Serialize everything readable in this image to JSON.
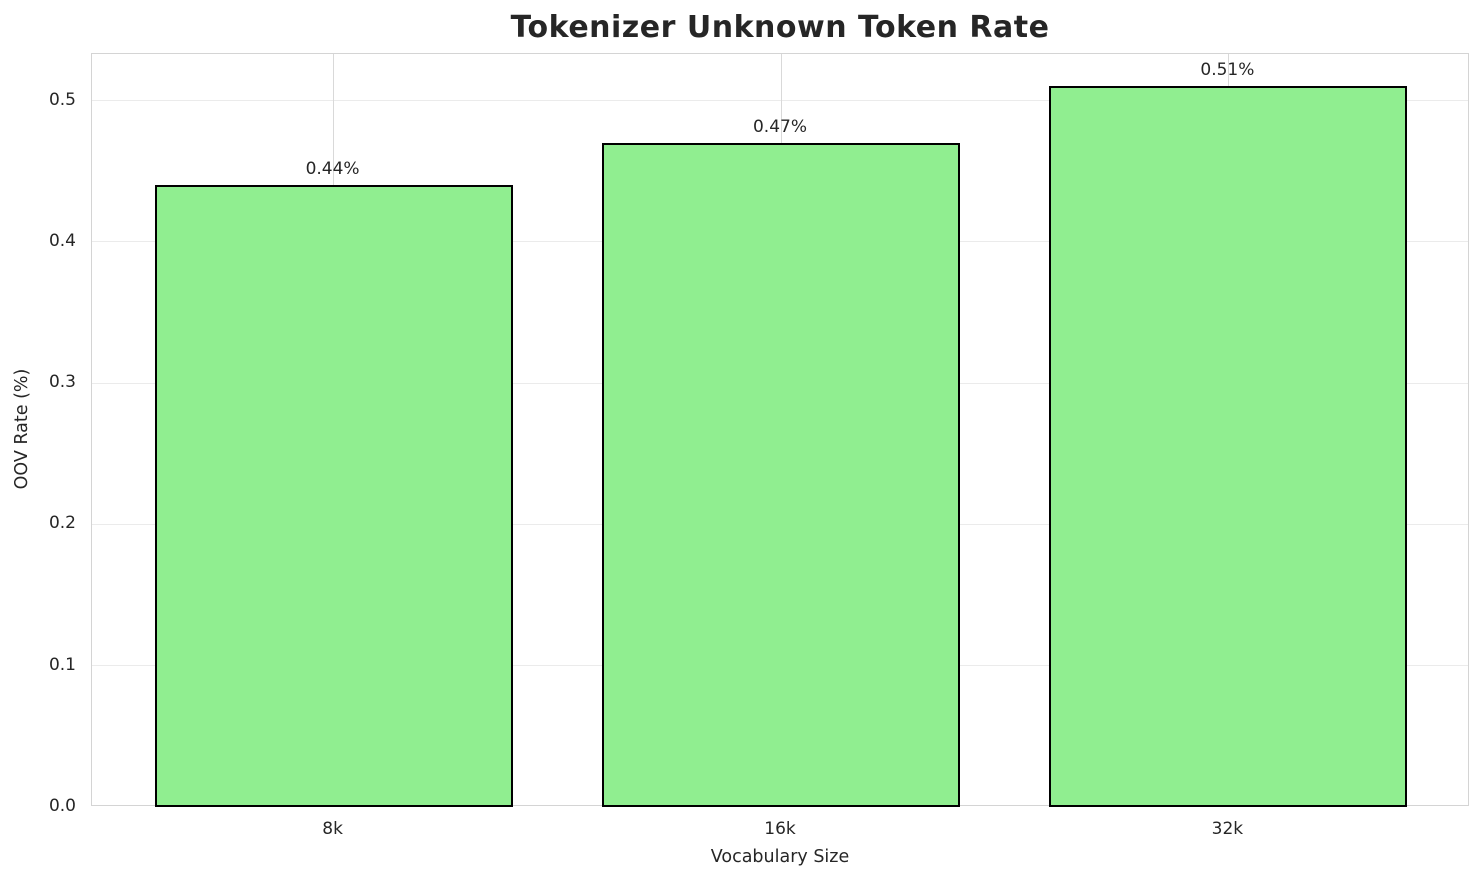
{
  "chart_data": {
    "type": "bar",
    "title": "Tokenizer Unknown Token Rate",
    "xlabel": "Vocabulary Size",
    "ylabel": "OOV Rate (%)",
    "categories": [
      "8k",
      "16k",
      "32k"
    ],
    "values": [
      0.44,
      0.47,
      0.51
    ],
    "bar_labels": [
      "0.44%",
      "0.47%",
      "0.51%"
    ],
    "yticks": [
      0.0,
      0.1,
      0.2,
      0.3,
      0.4,
      0.5
    ],
    "ytick_labels": [
      "0.0",
      "0.1",
      "0.2",
      "0.3",
      "0.4",
      "0.5"
    ],
    "ylim": [
      0,
      0.533
    ],
    "bar_rel_width": 0.8,
    "grid": true,
    "legend": "none",
    "colors": {
      "bar_fill": "#90ee90",
      "bar_edge": "#000000",
      "grid_line_h": "#ebebeb",
      "grid_line_v": "#d9d9d9",
      "spine": "#d4d4d4",
      "text": "#262626",
      "background": "#ffffff"
    }
  }
}
